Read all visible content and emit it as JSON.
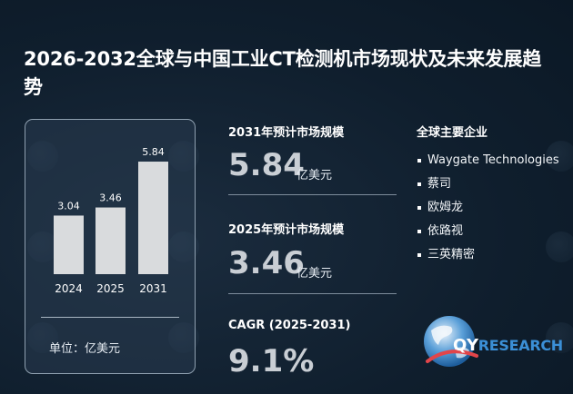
{
  "title": "2026-2032全球与中国工业CT检测机市场现状及未来发展趋势",
  "chart_data": {
    "type": "bar",
    "categories": [
      "2024",
      "2025",
      "2031"
    ],
    "values": [
      3.04,
      3.46,
      5.84
    ],
    "value_labels": [
      "3.04",
      "3.46",
      "5.84"
    ],
    "ylim": [
      0,
      6.5
    ],
    "unit_label": "单位：亿美元",
    "bar_color": "#d9dbdd"
  },
  "stats": [
    {
      "label": "2031年预计市场规模",
      "value": "5.84",
      "unit": "亿美元"
    },
    {
      "label": "2025年预计市场规模",
      "value": "3.46",
      "unit": "亿美元"
    },
    {
      "label": "CAGR (2025-2031)",
      "value": "9.1%",
      "unit": ""
    }
  ],
  "companies": {
    "title": "全球主要企业",
    "items": [
      "Waygate Technologies",
      "蔡司",
      "欧姆龙",
      "依路视",
      "三英精密"
    ]
  },
  "logo": {
    "text_a": "QY",
    "text_b": "RESEARCH"
  },
  "colors": {
    "background": "#0f1e2d",
    "accent": "#3b8fd6"
  }
}
